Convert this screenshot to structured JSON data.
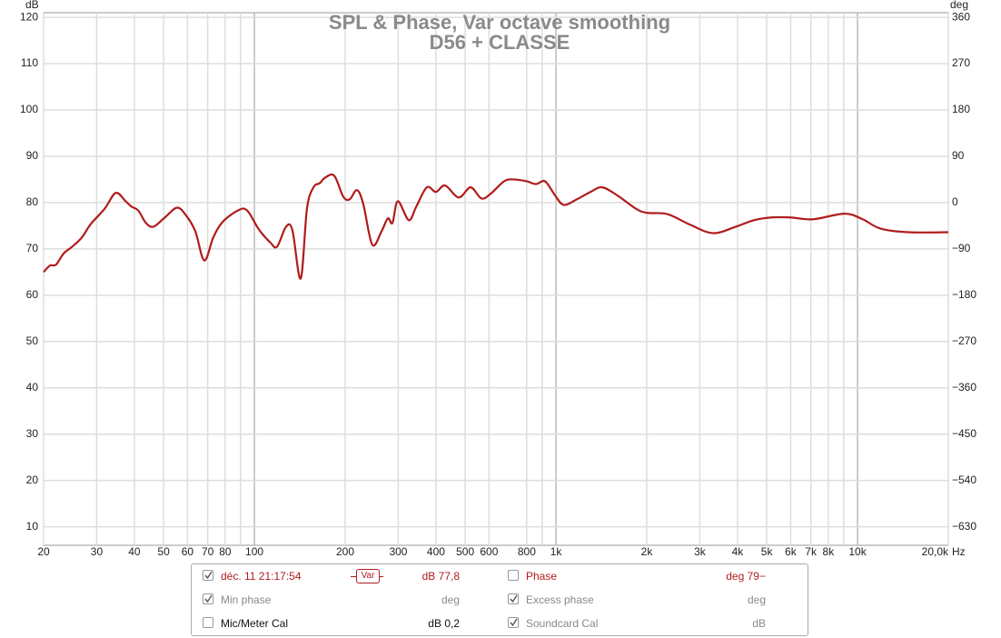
{
  "chart_data": {
    "type": "line",
    "title": "SPL & Phase, Var octave smoothing",
    "subtitle": "D56 + CLASSE",
    "y_unit": "dB",
    "y2_unit": "deg",
    "x_unit": "Hz",
    "log_x": true,
    "grid": true,
    "xlim": [
      20,
      20000
    ],
    "ylim": [
      6,
      121
    ],
    "y2lim": [
      -666,
      369
    ],
    "xticks": [
      20,
      30,
      40,
      50,
      60,
      70,
      80,
      100,
      200,
      300,
      400,
      500,
      600,
      800,
      {
        "value": 1000,
        "label": "1k"
      },
      {
        "value": 2000,
        "label": "2k"
      },
      {
        "value": 3000,
        "label": "3k"
      },
      {
        "value": 4000,
        "label": "4k"
      },
      {
        "value": 5000,
        "label": "5k"
      },
      {
        "value": 6000,
        "label": "6k"
      },
      {
        "value": 7000,
        "label": "7k"
      },
      {
        "value": 8000,
        "label": "8k"
      },
      {
        "value": 10000,
        "label": "10k"
      },
      {
        "value": 20000,
        "label": "20,0k"
      }
    ],
    "xminor": [
      90,
      900,
      9000
    ],
    "yticks": [
      10,
      20,
      30,
      40,
      50,
      60,
      70,
      80,
      90,
      100,
      110,
      120
    ],
    "y2ticks": [
      {
        "value": -630,
        "label": "−630"
      },
      {
        "value": -540,
        "label": "−540"
      },
      {
        "value": -450,
        "label": "−450"
      },
      {
        "value": -360,
        "label": "−360"
      },
      {
        "value": -270,
        "label": "−270"
      },
      {
        "value": -180,
        "label": "−180"
      },
      {
        "value": -90,
        "label": "−90"
      },
      0,
      90,
      180,
      270,
      360
    ],
    "series": [
      {
        "name": "déc. 11 21:17:54",
        "color": "#b01c1c",
        "x": [
          20,
          21,
          22,
          23.3,
          24.9,
          26.8,
          28.7,
          31.9,
          34.7,
          37.4,
          39.2,
          41.2,
          43.7,
          46.3,
          50.5,
          55.4,
          59.4,
          63.7,
          68.2,
          73.1,
          78.4,
          88.2,
          94.6,
          103.5,
          113.2,
          118.9,
          127.4,
          133.7,
          142.4,
          149.4,
          157,
          164.8,
          171.7,
          184,
          197,
          207,
          218.8,
          229.6,
          246,
          264,
          277,
          287,
          299,
          325,
          344,
          373,
          400,
          429,
          476,
          521,
          566,
          607,
          673,
          721,
          800,
          858,
          920,
          990,
          1060,
          1172,
          1301,
          1424,
          1602,
          1840,
          2000,
          2345,
          2790,
          3320,
          3950,
          4530,
          5200,
          5980,
          7110,
          9060,
          10400,
          11900,
          14730,
          20000
        ],
        "values": [
          65,
          66.4,
          66.6,
          69,
          70.5,
          72.5,
          75.4,
          78.7,
          82.1,
          80.3,
          79.1,
          78.3,
          75.6,
          74.8,
          76.8,
          78.9,
          77.2,
          73.8,
          67.5,
          72.5,
          75.8,
          78.3,
          78.3,
          74.2,
          71.3,
          70.5,
          74.8,
          74,
          63.6,
          78.7,
          83.3,
          84.2,
          85.4,
          85.8,
          81.3,
          80.7,
          82.7,
          79.7,
          70.9,
          73.8,
          76.6,
          75.6,
          80.3,
          76.2,
          79.1,
          83.3,
          82.3,
          83.7,
          81.1,
          83.3,
          80.9,
          81.9,
          84.6,
          85,
          84.6,
          84,
          84.6,
          81.7,
          79.5,
          80.7,
          82.3,
          83.3,
          81.5,
          78.7,
          77.8,
          77.5,
          75.2,
          73.4,
          74.8,
          76.2,
          76.8,
          76.8,
          76.4,
          77.6,
          76.4,
          74.4,
          73.6,
          73.6
        ]
      }
    ]
  },
  "legend_panel": {
    "rows": [
      [
        {
          "checked": true,
          "label": "déc. 11 21:17:54",
          "badge": "Var",
          "value": "77,8 dB",
          "style": "red"
        },
        {
          "checked": false,
          "label": "Phase",
          "value": "−79 deg",
          "style": "red"
        }
      ],
      [
        {
          "checked": true,
          "label": "Min phase",
          "value": "deg",
          "style": "grey"
        },
        {
          "checked": true,
          "label": "Excess phase",
          "value": "deg",
          "style": "grey"
        }
      ],
      [
        {
          "checked": false,
          "label": "Mic/Meter Cal",
          "value": "0,2 dB",
          "style": "blk"
        },
        {
          "checked": true,
          "label": "Soundcard Cal",
          "value": "dB",
          "style": "grey"
        }
      ]
    ]
  }
}
